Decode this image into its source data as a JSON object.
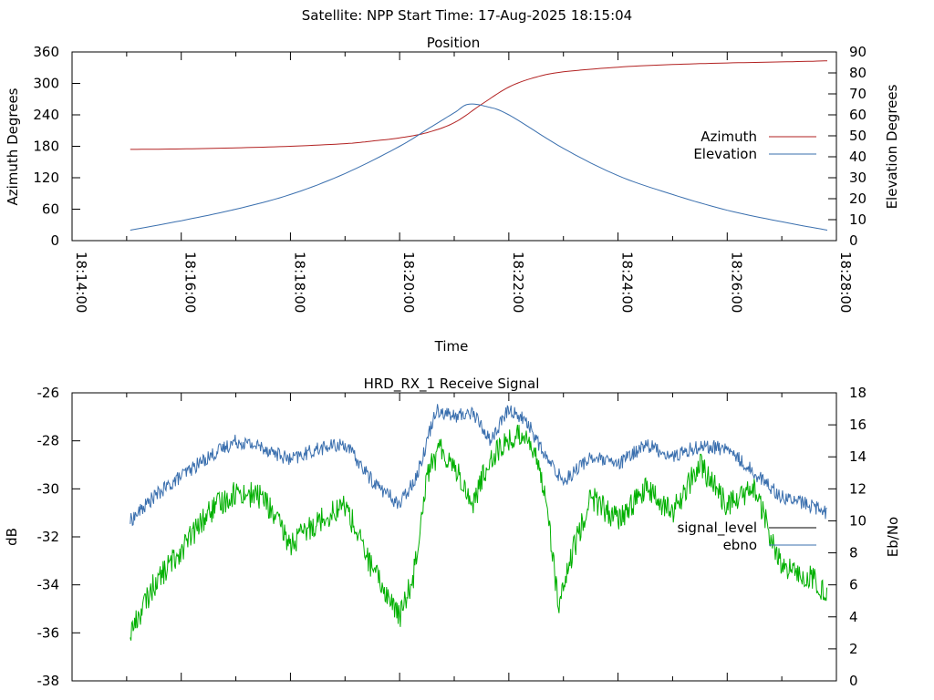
{
  "page": {
    "suptitle": "Satellite: NPP    Start Time: 17-Aug-2025 18:15:04"
  },
  "chart_data": [
    {
      "type": "line",
      "title": "Position",
      "xlabel": "Time",
      "ylabel": "Azimuth Degrees",
      "y2label": "Elevation Degrees",
      "xlim": [
        "18:14:00",
        "18:28:00"
      ],
      "ylim": [
        0,
        360
      ],
      "y2lim": [
        0,
        90
      ],
      "x_ticks": [
        "18:14:00",
        "18:16:00",
        "18:18:00",
        "18:20:00",
        "18:22:00",
        "18:24:00",
        "18:26:00",
        "18:28:00"
      ],
      "y_ticks": [
        "0",
        "60",
        "120",
        "180",
        "240",
        "300",
        "360"
      ],
      "y2_ticks": [
        "0",
        "10",
        "20",
        "30",
        "40",
        "50",
        "60",
        "70",
        "80",
        "90"
      ],
      "legend_position": "right",
      "series": [
        {
          "name": "Azimuth",
          "axis": "left",
          "color": "#b22222",
          "points": [
            [
              "18:15:04",
              174
            ],
            [
              "18:16:00",
              175
            ],
            [
              "18:17:00",
              177
            ],
            [
              "18:18:00",
              180
            ],
            [
              "18:19:00",
              185
            ],
            [
              "18:19:30",
              190
            ],
            [
              "18:20:00",
              196
            ],
            [
              "18:20:30",
              206
            ],
            [
              "18:21:00",
              225
            ],
            [
              "18:21:30",
              260
            ],
            [
              "18:22:00",
              293
            ],
            [
              "18:22:30",
              312
            ],
            [
              "18:23:00",
              322
            ],
            [
              "18:24:00",
              331
            ],
            [
              "18:25:00",
              336
            ],
            [
              "18:26:00",
              339
            ],
            [
              "18:27:00",
              341
            ],
            [
              "18:27:50",
              343
            ]
          ]
        },
        {
          "name": "Elevation",
          "axis": "right",
          "color": "#3a6fae",
          "points": [
            [
              "18:15:04",
              5
            ],
            [
              "18:16:00",
              9.5
            ],
            [
              "18:17:00",
              15
            ],
            [
              "18:18:00",
              22
            ],
            [
              "18:19:00",
              32
            ],
            [
              "18:20:00",
              45
            ],
            [
              "18:20:30",
              53
            ],
            [
              "18:21:00",
              61
            ],
            [
              "18:21:15",
              65
            ],
            [
              "18:21:35",
              64
            ],
            [
              "18:22:00",
              60
            ],
            [
              "18:23:00",
              44
            ],
            [
              "18:24:00",
              31
            ],
            [
              "18:25:00",
              22
            ],
            [
              "18:26:00",
              14.5
            ],
            [
              "18:27:00",
              9
            ],
            [
              "18:27:50",
              5
            ]
          ]
        }
      ]
    },
    {
      "type": "line",
      "title": "HRD_RX_1 Receive Signal",
      "ylabel": "dB",
      "y2label": "Eb/No",
      "xlim": [
        "18:14:00",
        "18:28:00"
      ],
      "ylim": [
        -38,
        -26
      ],
      "y2lim": [
        0,
        18
      ],
      "y_ticks": [
        "-26",
        "-28",
        "-30",
        "-32",
        "-34",
        "-36",
        "-38"
      ],
      "y2_ticks": [
        "0",
        "2",
        "4",
        "6",
        "8",
        "10",
        "12",
        "14",
        "16",
        "18"
      ],
      "legend_position": "right",
      "series": [
        {
          "name": "signal_level",
          "axis": "left",
          "color": "#000000",
          "points": []
        },
        {
          "name": "ebno",
          "axis": "right",
          "color": "#3a6fae",
          "points": [
            [
              "18:15:04",
              10.0
            ],
            [
              "18:15:30",
              11.5
            ],
            [
              "18:16:00",
              12.8
            ],
            [
              "18:16:30",
              14.0
            ],
            [
              "18:17:00",
              15.0
            ],
            [
              "18:17:30",
              14.6
            ],
            [
              "18:18:00",
              13.8
            ],
            [
              "18:18:30",
              14.5
            ],
            [
              "18:19:00",
              14.8
            ],
            [
              "18:19:30",
              12.5
            ],
            [
              "18:20:00",
              11.0
            ],
            [
              "18:20:20",
              13.0
            ],
            [
              "18:20:40",
              17.0
            ],
            [
              "18:21:00",
              16.5
            ],
            [
              "18:21:20",
              16.8
            ],
            [
              "18:21:40",
              15.0
            ],
            [
              "18:22:00",
              17.0
            ],
            [
              "18:22:20",
              16.2
            ],
            [
              "18:22:40",
              14.0
            ],
            [
              "18:23:00",
              12.5
            ],
            [
              "18:23:30",
              14.0
            ],
            [
              "18:24:00",
              13.5
            ],
            [
              "18:24:30",
              14.8
            ],
            [
              "18:25:00",
              14.0
            ],
            [
              "18:25:30",
              14.7
            ],
            [
              "18:26:00",
              14.5
            ],
            [
              "18:26:30",
              13.0
            ],
            [
              "18:27:00",
              11.5
            ],
            [
              "18:27:30",
              11.0
            ],
            [
              "18:27:50",
              10.5
            ]
          ]
        },
        {
          "name": "",
          "axis": "right",
          "color": "#00b000",
          "points": [
            [
              "18:15:04",
              3.0
            ],
            [
              "18:15:30",
              6.0
            ],
            [
              "18:16:00",
              8.2
            ],
            [
              "18:16:30",
              10.5
            ],
            [
              "18:17:00",
              11.8
            ],
            [
              "18:17:30",
              11.5
            ],
            [
              "18:18:00",
              8.5
            ],
            [
              "18:18:30",
              10.0
            ],
            [
              "18:19:00",
              11.0
            ],
            [
              "18:19:30",
              7.0
            ],
            [
              "18:20:00",
              4.0
            ],
            [
              "18:20:15",
              6.5
            ],
            [
              "18:20:30",
              13.0
            ],
            [
              "18:20:45",
              14.5
            ],
            [
              "18:21:00",
              13.5
            ],
            [
              "18:21:20",
              11.0
            ],
            [
              "18:21:40",
              14.0
            ],
            [
              "18:22:00",
              15.0
            ],
            [
              "18:22:20",
              15.5
            ],
            [
              "18:22:40",
              12.0
            ],
            [
              "18:22:55",
              4.5
            ],
            [
              "18:23:10",
              8.0
            ],
            [
              "18:23:30",
              11.5
            ],
            [
              "18:24:00",
              10.0
            ],
            [
              "18:24:30",
              12.0
            ],
            [
              "18:25:00",
              10.5
            ],
            [
              "18:25:30",
              13.5
            ],
            [
              "18:26:00",
              11.0
            ],
            [
              "18:26:30",
              12.0
            ],
            [
              "18:27:00",
              7.0
            ],
            [
              "18:27:30",
              6.5
            ],
            [
              "18:27:50",
              5.5
            ]
          ]
        }
      ]
    }
  ]
}
